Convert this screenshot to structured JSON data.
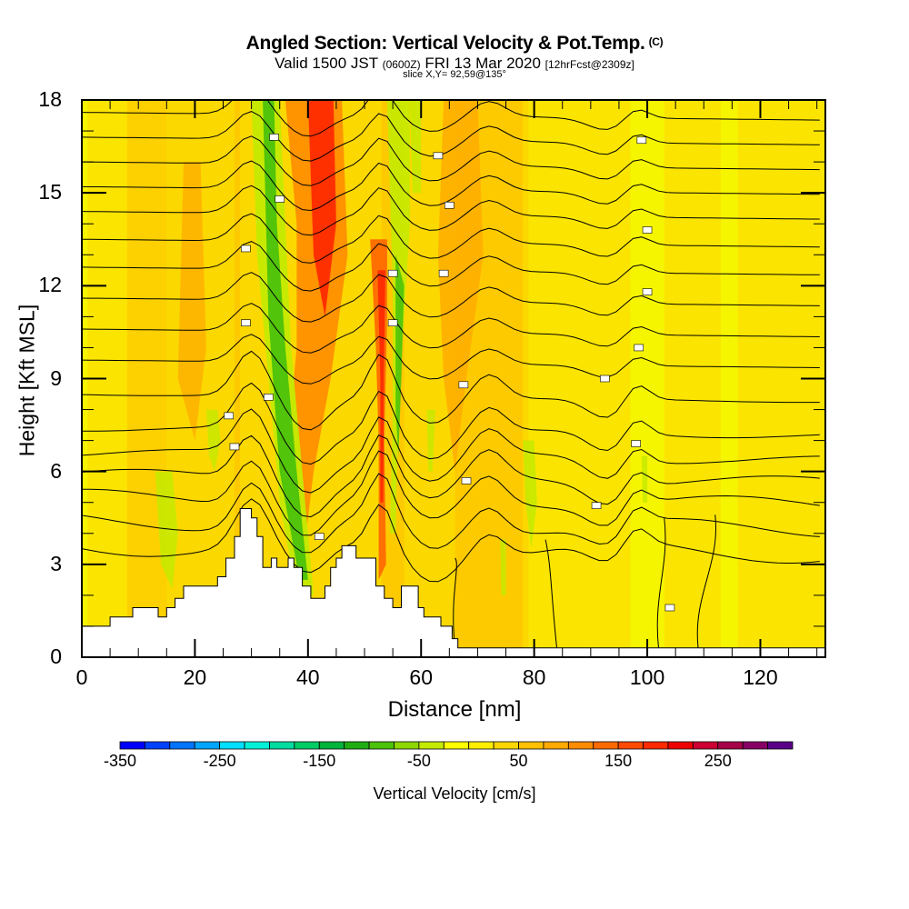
{
  "header": {
    "title": "Angled Section: Vertical Velocity & Pot.Temp.",
    "copyright": "(C)",
    "valid_prefix": "Valid 1500 JST",
    "valid_utc": "(0600Z)",
    "valid_date": "FRI 13 Mar 2020",
    "forecast": "[12hrFcst@2309z]",
    "slice": "slice X,Y= 92,59@135°"
  },
  "chart_data": {
    "type": "heatmap",
    "title": "Angled Section: Vertical Velocity & Pot.Temp.",
    "xlabel": "Distance [nm]",
    "ylabel": "Height [Kft MSL]",
    "xlim": [
      0,
      131.5
    ],
    "ylim": [
      0,
      18
    ],
    "x_ticks": [
      "0",
      "20",
      "40",
      "60",
      "80",
      "100",
      "120"
    ],
    "y_ticks": [
      "0",
      "3",
      "6",
      "9",
      "12",
      "15",
      "18"
    ],
    "x_tick_values": [
      0,
      20,
      40,
      60,
      80,
      100,
      120
    ],
    "y_tick_values": [
      0,
      3,
      6,
      9,
      12,
      15,
      18
    ],
    "grid": false,
    "overlay": "potential temperature contours (black lines) with small inline labels",
    "terrain_profile": {
      "distance_nm": [
        0,
        5,
        5,
        9,
        9,
        13.5,
        13.5,
        15,
        15,
        16.5,
        16.5,
        18,
        18,
        24,
        24,
        25.5,
        25.5,
        27,
        27,
        28,
        28,
        30,
        30,
        31,
        31,
        32,
        32,
        33.5,
        33.5,
        34.5,
        34.5,
        36.5,
        36.5,
        37.5,
        37.5,
        39,
        39,
        40.5,
        40.5,
        43,
        43,
        44,
        44,
        45,
        45,
        46,
        46,
        48.5,
        48.5,
        52,
        52,
        53.5,
        53.5,
        55,
        55,
        56.5,
        56.5,
        59.5,
        59.5,
        60.5,
        60.5,
        63.5,
        63.5,
        65.5,
        65.5,
        66.5,
        66.5,
        71,
        71,
        131.5
      ],
      "height_kft": [
        1.0,
        1.0,
        1.3,
        1.3,
        1.6,
        1.6,
        1.3,
        1.3,
        1.6,
        1.6,
        1.9,
        1.9,
        2.3,
        2.3,
        2.6,
        2.6,
        3.2,
        3.2,
        3.9,
        3.9,
        4.8,
        4.8,
        4.5,
        4.5,
        3.9,
        3.9,
        2.9,
        2.9,
        3.2,
        3.2,
        2.9,
        2.9,
        3.2,
        3.2,
        2.9,
        2.9,
        2.3,
        2.3,
        1.9,
        1.9,
        2.3,
        2.3,
        2.9,
        2.9,
        3.2,
        3.2,
        3.6,
        3.6,
        3.2,
        3.2,
        2.3,
        2.3,
        1.9,
        1.9,
        1.6,
        1.6,
        2.3,
        2.3,
        1.6,
        1.6,
        1.3,
        1.3,
        1.0,
        1.0,
        0.6,
        0.6,
        0.3,
        0.3,
        0.3,
        0.3
      ]
    },
    "velocity_bands": [
      {
        "x_nm": 8,
        "value": 40
      },
      {
        "x_nm": 18,
        "value": 75
      },
      {
        "x_nm": 24,
        "value": -25
      },
      {
        "x_nm": 32,
        "value": -100
      },
      {
        "x_nm": 36,
        "value": -125
      },
      {
        "x_nm": 42,
        "value": 175
      },
      {
        "x_nm": 45,
        "value": 125
      },
      {
        "x_nm": 53.5,
        "value": 175
      },
      {
        "x_nm": 57,
        "value": -100
      },
      {
        "x_nm": 66,
        "value": 100
      },
      {
        "x_nm": 71,
        "value": 100
      },
      {
        "x_nm": 80,
        "value": -50
      },
      {
        "x_nm": 90,
        "value": 50
      },
      {
        "x_nm": 108,
        "value": 50
      }
    ],
    "colorbar": {
      "label": "Vertical Velocity [cm/s]",
      "min": -350,
      "max": 325,
      "step": 25,
      "tick_labels": [
        "-350",
        "-250",
        "-150",
        "-50",
        "50",
        "150",
        "250"
      ],
      "tick_values": [
        -350,
        -250,
        -150,
        -50,
        50,
        150,
        250
      ],
      "colors": [
        "#0000ff",
        "#0040ff",
        "#0073ff",
        "#00a5ff",
        "#00e0ff",
        "#00f0d8",
        "#00dba0",
        "#00cc66",
        "#00b33c",
        "#1fae12",
        "#4cc20a",
        "#8fd600",
        "#c4ea00",
        "#ffff00",
        "#ffee00",
        "#ffd700",
        "#ffc000",
        "#ffaa00",
        "#ff8c00",
        "#ff6a00",
        "#ff4a00",
        "#ff2a00",
        "#ee0000",
        "#cc0033",
        "#a60048",
        "#880066",
        "#5a0088"
      ]
    }
  }
}
